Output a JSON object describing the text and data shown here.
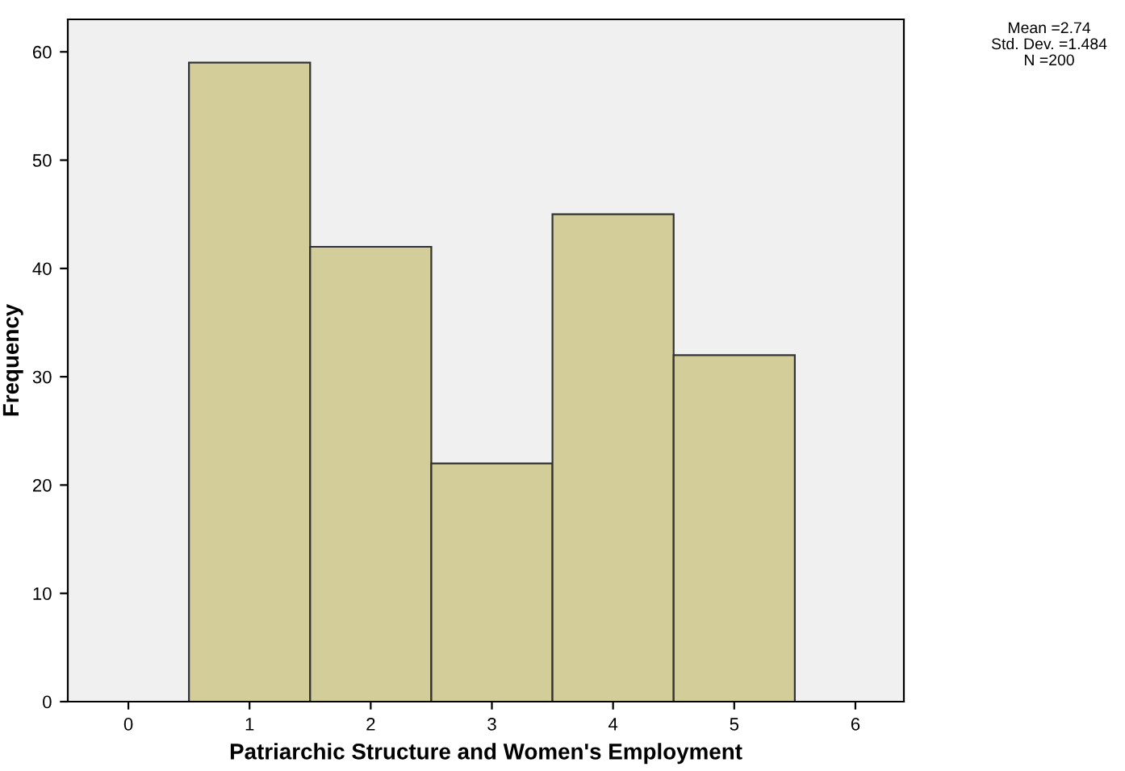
{
  "chart_data": {
    "type": "histogram",
    "xlabel": "Patriarchic Structure and Women's Employment",
    "ylabel": "Frequency",
    "bins": [
      0.5,
      1.5,
      2.5,
      3.5,
      4.5,
      5.5
    ],
    "values": [
      59,
      42,
      22,
      45,
      32
    ],
    "color": "#d3ce99",
    "xlim": [
      -0.5,
      6.4
    ],
    "xticks": [
      0,
      1,
      2,
      3,
      4,
      5,
      6
    ],
    "ylim": [
      0,
      63
    ],
    "yticks": [
      0,
      10,
      20,
      30,
      40,
      50,
      60
    ],
    "grid": false,
    "annotations": [
      "Mean =2.74",
      "Std. Dev. =1.484",
      "N =200"
    ]
  }
}
